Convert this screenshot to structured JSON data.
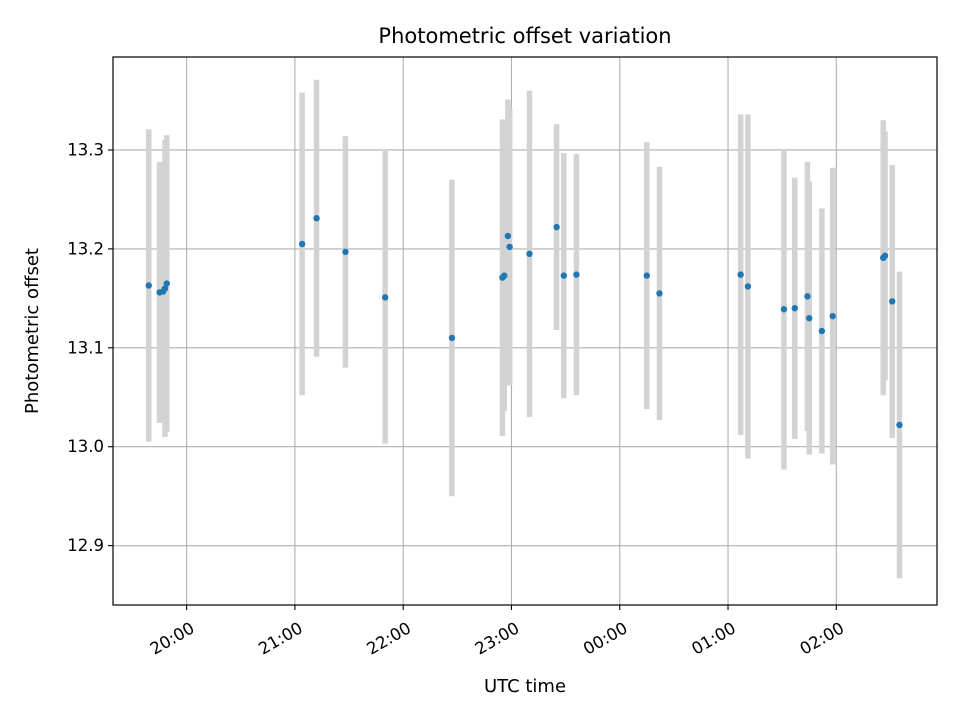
{
  "chart_data": {
    "type": "scatter",
    "title": "Photometric offset variation",
    "xlabel": "UTC time",
    "ylabel": "Photometric offset",
    "ylim": [
      12.84,
      13.394
    ],
    "xlim_hours": [
      19.32,
      26.93
    ],
    "x_ticks": [
      {
        "hour": 20,
        "label": "20:00"
      },
      {
        "hour": 21,
        "label": "21:00"
      },
      {
        "hour": 22,
        "label": "22:00"
      },
      {
        "hour": 23,
        "label": "23:00"
      },
      {
        "hour": 24,
        "label": "00:00"
      },
      {
        "hour": 25,
        "label": "01:00"
      },
      {
        "hour": 26,
        "label": "02:00"
      }
    ],
    "y_ticks": [
      {
        "value": 12.9,
        "label": "12.9"
      },
      {
        "value": 13.0,
        "label": "13.0"
      },
      {
        "value": 13.1,
        "label": "13.1"
      },
      {
        "value": 13.2,
        "label": "13.2"
      },
      {
        "value": 13.3,
        "label": "13.3"
      }
    ],
    "grid": true,
    "marker_color": "#1f77b4",
    "errorbar_color": "#d3d3d3",
    "points": [
      {
        "x": "19:39",
        "y": 13.163,
        "err": 0.158
      },
      {
        "x": "19:45",
        "y": 13.156,
        "err": 0.132
      },
      {
        "x": "19:47",
        "y": 13.157,
        "err": 0.13
      },
      {
        "x": "19:48",
        "y": 13.16,
        "err": 0.15
      },
      {
        "x": "19:49",
        "y": 13.165,
        "err": 0.15
      },
      {
        "x": "21:04",
        "y": 13.205,
        "err": 0.153
      },
      {
        "x": "21:12",
        "y": 13.231,
        "err": 0.14
      },
      {
        "x": "21:28",
        "y": 13.197,
        "err": 0.117
      },
      {
        "x": "21:50",
        "y": 13.151,
        "err": 0.148
      },
      {
        "x": "22:27",
        "y": 13.11,
        "err": 0.16
      },
      {
        "x": "22:55",
        "y": 13.171,
        "err": 0.16
      },
      {
        "x": "22:56",
        "y": 13.173,
        "err": 0.137
      },
      {
        "x": "22:58",
        "y": 13.213,
        "err": 0.138
      },
      {
        "x": "22:59",
        "y": 13.202,
        "err": 0.14
      },
      {
        "x": "23:10",
        "y": 13.195,
        "err": 0.165
      },
      {
        "x": "23:25",
        "y": 13.222,
        "err": 0.104
      },
      {
        "x": "23:29",
        "y": 13.173,
        "err": 0.124
      },
      {
        "x": "23:36",
        "y": 13.174,
        "err": 0.122
      },
      {
        "x": "00:15",
        "y": 13.173,
        "err": 0.135
      },
      {
        "x": "00:22",
        "y": 13.155,
        "err": 0.128
      },
      {
        "x": "01:07",
        "y": 13.174,
        "err": 0.162
      },
      {
        "x": "01:11",
        "y": 13.162,
        "err": 0.174
      },
      {
        "x": "01:31",
        "y": 13.139,
        "err": 0.162
      },
      {
        "x": "01:37",
        "y": 13.14,
        "err": 0.132
      },
      {
        "x": "01:44",
        "y": 13.152,
        "err": 0.136
      },
      {
        "x": "01:45",
        "y": 13.13,
        "err": 0.138
      },
      {
        "x": "01:52",
        "y": 13.117,
        "err": 0.124
      },
      {
        "x": "01:58",
        "y": 13.132,
        "err": 0.15
      },
      {
        "x": "02:26",
        "y": 13.191,
        "err": 0.139
      },
      {
        "x": "02:27",
        "y": 13.193,
        "err": 0.126
      },
      {
        "x": "02:31",
        "y": 13.147,
        "err": 0.138
      },
      {
        "x": "02:35",
        "y": 13.022,
        "err": 0.155
      }
    ]
  }
}
